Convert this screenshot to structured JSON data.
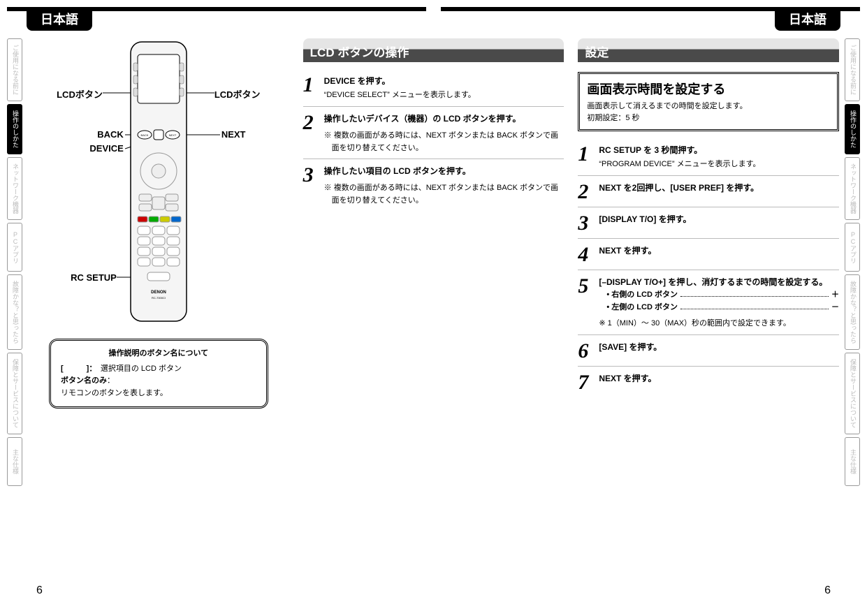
{
  "lang_label": "日本語",
  "page_number": "6",
  "nav": [
    {
      "label": "ご使用になる前に",
      "active": false
    },
    {
      "label": "操作のしかた",
      "active": true
    },
    {
      "label": "ネットワーク機器",
      "active": false
    },
    {
      "label": "PCアプリ",
      "active": false
    },
    {
      "label": "故障かな？と思ったら",
      "active": false
    },
    {
      "label": "保障とサービスについて",
      "active": false
    },
    {
      "label": "主な仕様",
      "active": false
    }
  ],
  "remote": {
    "callouts": {
      "lcd_left": "LCDボタン",
      "lcd_right": "LCDボタン",
      "back": "BACK",
      "device": "DEVICE",
      "next": "NEXT",
      "rc_setup": "RC SETUP"
    },
    "brand": "DENON",
    "model": "RC-7000CI"
  },
  "note": {
    "title": "操作説明のボタン名について",
    "line1_bracket": "[　　　]：",
    "line1_text": "　選択項目の LCD ボタン",
    "line2_label": "ボタン名のみ",
    "line2_text": "：",
    "line3": "リモコンのボタンを表します。"
  },
  "sec1": {
    "title": "LCD ボタンの操作",
    "steps": [
      {
        "n": "1",
        "head": "DEVICE を押す。",
        "sub": "“DEVICE SELECT” メニューを表示します。"
      },
      {
        "n": "2",
        "head": "操作したいデバイス（機器）の LCD ボタンを押す。",
        "note": "※ 複数の画面がある時には、NEXT ボタンまたは BACK ボタンで画面を切り替えてください。"
      },
      {
        "n": "3",
        "head": "操作したい項目の LCD ボタンを押す。",
        "note": "※ 複数の画面がある時には、NEXT ボタンまたは BACK ボタンで画面を切り替えてください。"
      }
    ]
  },
  "sec2": {
    "title": "設定",
    "frame_title": "画面表示時間を設定する",
    "frame_sub1": "画面表示して消えるまでの時間を設定します。",
    "frame_sub2": "初期設定：5 秒",
    "steps": [
      {
        "n": "1",
        "head": "RC SETUP を 3 秒間押す。",
        "sub": "“PROGRAM DEVICE” メニューを表示します。"
      },
      {
        "n": "2",
        "head": "NEXT を2回押し、[USER PREF] を押す。"
      },
      {
        "n": "3",
        "head": "[DISPLAY T/O] を押す。"
      },
      {
        "n": "4",
        "head": "NEXT を押す。"
      },
      {
        "n": "5",
        "head": "[–DISPLAY T/O+] を押し、消灯するまでの時間を設定する。",
        "bullets": [
          {
            "lbl": "• 右側の LCD ボタン",
            "val": "＋"
          },
          {
            "lbl": "• 左側の LCD ボタン",
            "val": "－"
          }
        ],
        "note": "※ 1（MIN）～ 30（MAX）秒の範囲内で設定できます。"
      },
      {
        "n": "6",
        "head": "[SAVE] を押す。"
      },
      {
        "n": "7",
        "head": "NEXT を押す。"
      }
    ]
  }
}
